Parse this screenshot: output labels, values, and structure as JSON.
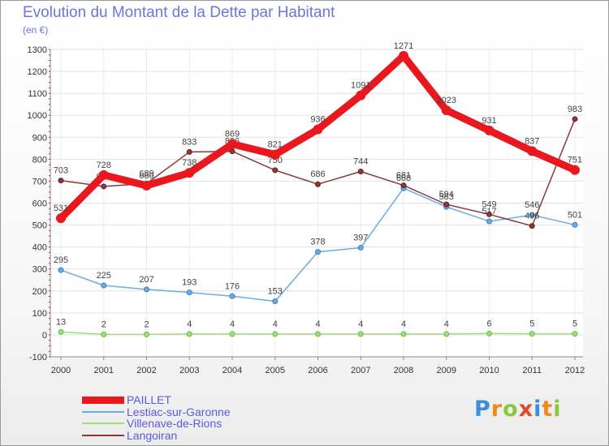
{
  "header": {
    "title": "Evolution du Montant de la Dette par Habitant",
    "subtitle": "(en €)"
  },
  "brand": {
    "letters": [
      "P",
      "r",
      "o",
      "x",
      "i",
      "t",
      "i"
    ],
    "colors": [
      "#3a8fd8",
      "#f08a1c",
      "#8cc63e",
      "#e04a2a",
      "#3a8fd8",
      "#f08a1c",
      "#8cc63e"
    ]
  },
  "chart_data": {
    "type": "line",
    "title": "Evolution du Montant de la Dette par Habitant",
    "subtitle": "(en €)",
    "xlabel": "",
    "ylabel": "",
    "ylim": [
      -100,
      1300
    ],
    "yticks": [
      -100,
      0,
      100,
      200,
      300,
      400,
      500,
      600,
      700,
      800,
      900,
      1000,
      1100,
      1200,
      1300
    ],
    "x": [
      "2000",
      "2001",
      "2002",
      "2003",
      "2004",
      "2005",
      "2006",
      "2007",
      "2008",
      "2009",
      "2010",
      "2011",
      "2012"
    ],
    "grid": true,
    "legend_position": "bottom-left",
    "series": [
      {
        "name": "PAILLET",
        "color": "#e8181e",
        "values": [
          531,
          728,
          680,
          738,
          869,
          821,
          936,
          1091,
          1271,
          1023,
          931,
          837,
          751
        ]
      },
      {
        "name": "Lestiac-sur-Garonne",
        "color": "#6aaee0",
        "marker_color": "#3a7cc0",
        "values": [
          295,
          225,
          207,
          193,
          176,
          153,
          378,
          397,
          668,
          583,
          517,
          546,
          501
        ]
      },
      {
        "name": "Villenave-de-Rions",
        "color": "#9ee07a",
        "marker_color": "#6abf3c",
        "values": [
          13,
          2,
          2,
          4,
          4,
          4,
          4,
          4,
          4,
          4,
          6,
          5,
          5
        ]
      },
      {
        "name": "Langoiran",
        "color": "#8a3a3a",
        "marker_color": "#6a1e1e",
        "values": [
          703,
          676,
          689,
          833,
          836,
          750,
          686,
          744,
          681,
          594,
          549,
          496,
          983
        ]
      }
    ],
    "label_color": "#444444"
  }
}
